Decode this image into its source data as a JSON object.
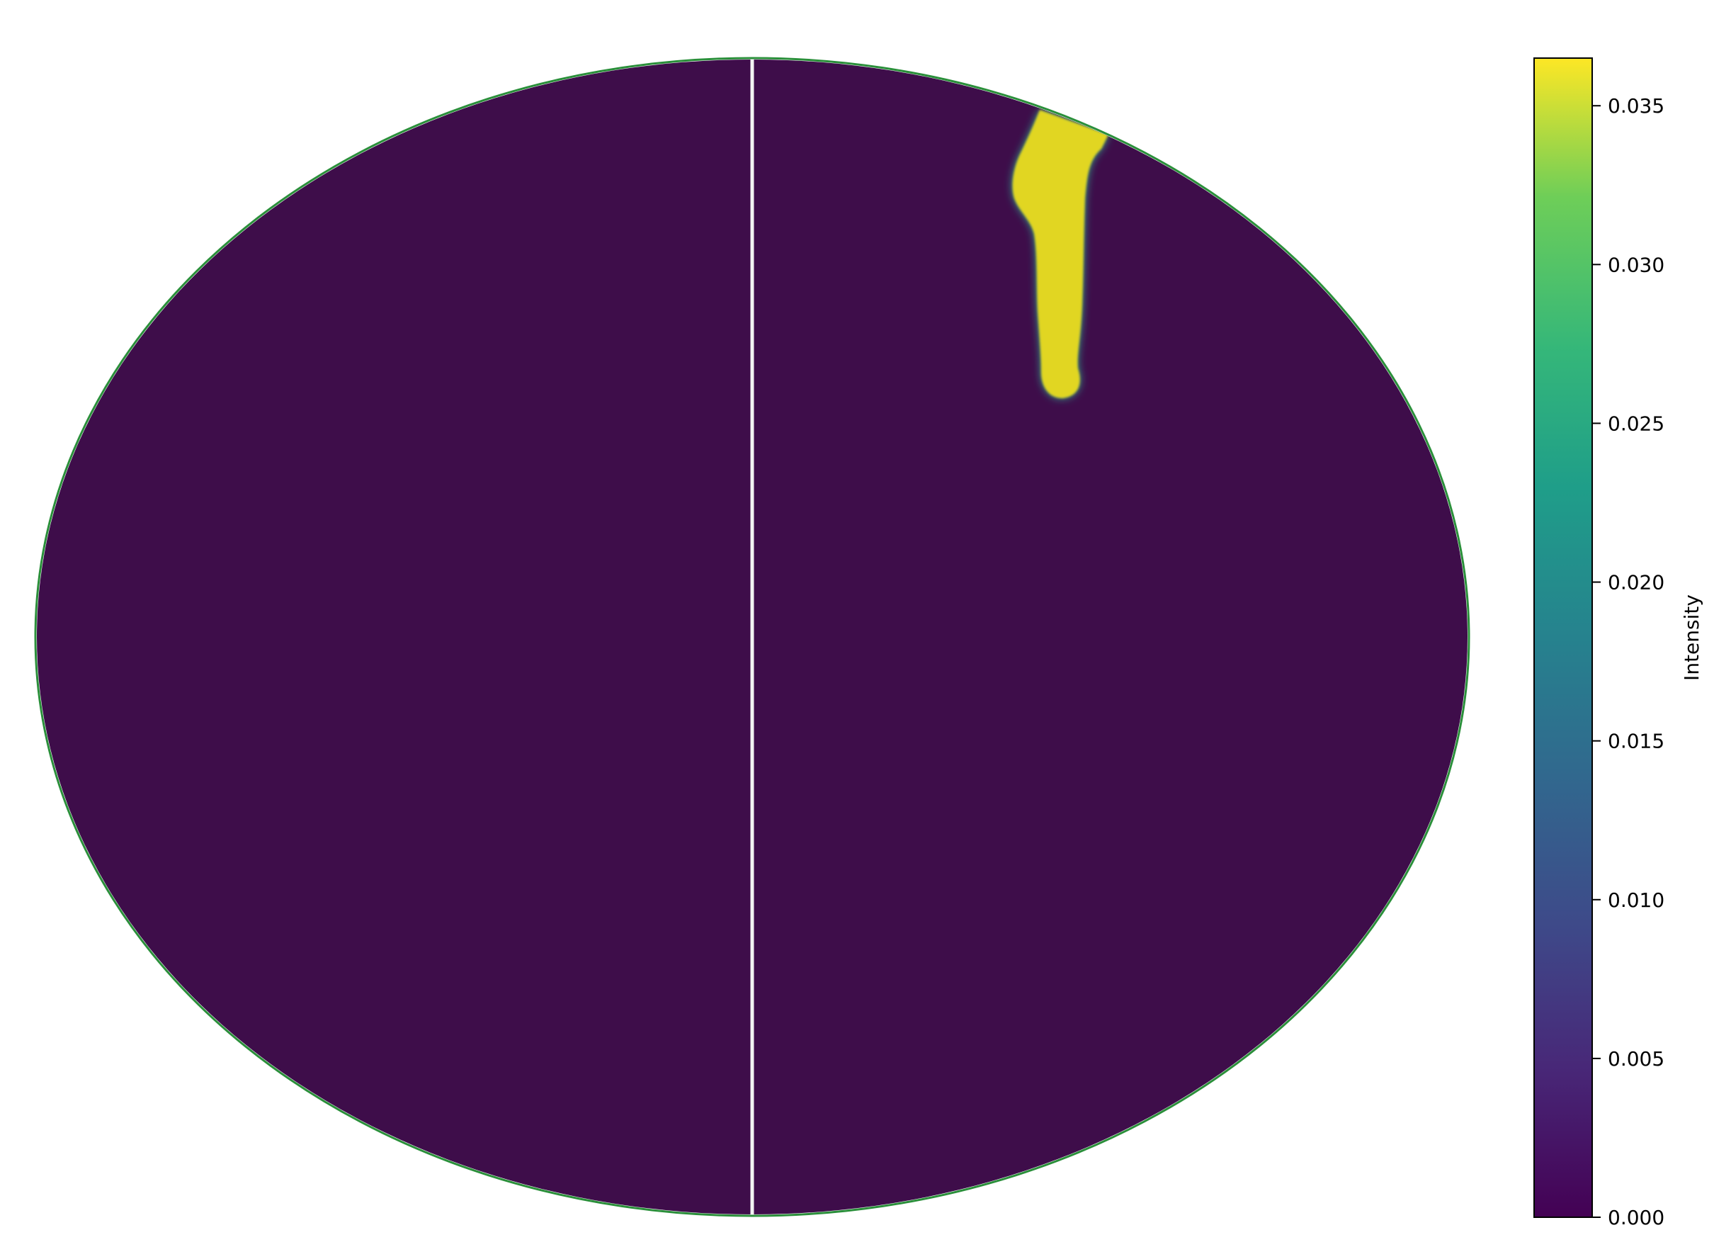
{
  "chart_data": {
    "type": "heatmap",
    "projection": "ellipse",
    "title": "",
    "xlabel": "",
    "ylabel": "",
    "background_value": 0.0,
    "colorbar": {
      "label": "Intensity",
      "colormap": "viridis",
      "range": [
        0.0,
        0.0365
      ],
      "ticks": [
        0.0,
        0.005,
        0.01,
        0.015,
        0.02,
        0.025,
        0.03,
        0.035
      ],
      "tick_labels": [
        "0.000",
        "0.005",
        "0.010",
        "0.015",
        "0.020",
        "0.025",
        "0.030",
        "0.035"
      ]
    },
    "hotspot": {
      "description": "single narrow elongated high-intensity region near the top, right of the central meridian",
      "value": 0.0345
    },
    "colors": {
      "low": "#3e0d4a",
      "high": "#e1d620",
      "edge": "#2a8f3a",
      "meridian": "#f3f3f3"
    }
  }
}
